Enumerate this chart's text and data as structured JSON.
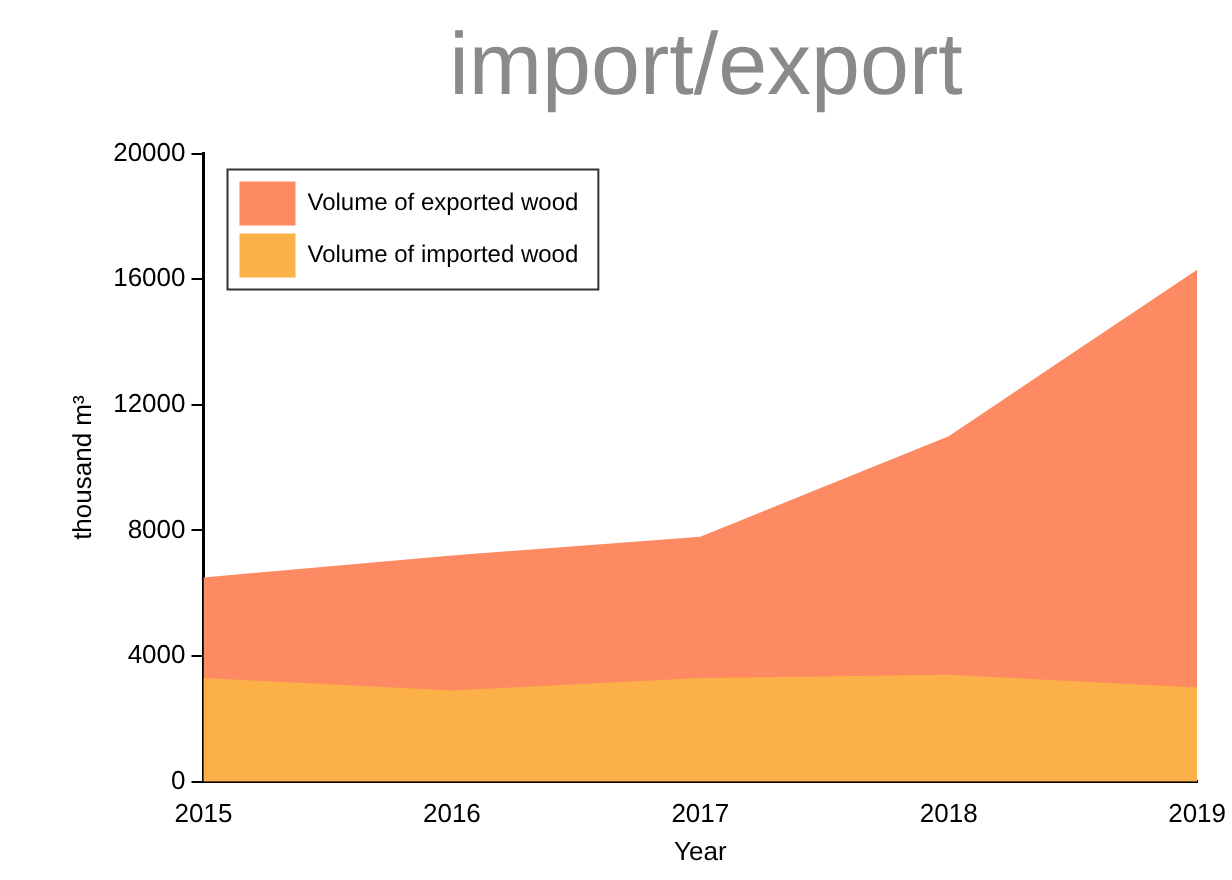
{
  "chart_data": {
    "type": "area",
    "title": "import/export",
    "xlabel": "Year",
    "ylabel": "thousand m³",
    "categories": [
      "2015",
      "2016",
      "2017",
      "2018",
      "2019"
    ],
    "series": [
      {
        "name": "Volume of exported wood",
        "color": "#fd8a62",
        "values": [
          6500,
          7200,
          7800,
          11000,
          16300
        ]
      },
      {
        "name": "Volume of imported wood",
        "color": "#fcb048",
        "values": [
          3300,
          2900,
          3300,
          3400,
          3000
        ]
      }
    ],
    "ylim": [
      0,
      20000
    ],
    "yticks": [
      0,
      4000,
      8000,
      12000,
      16000,
      20000
    ],
    "grid": false,
    "legend": "top left"
  }
}
